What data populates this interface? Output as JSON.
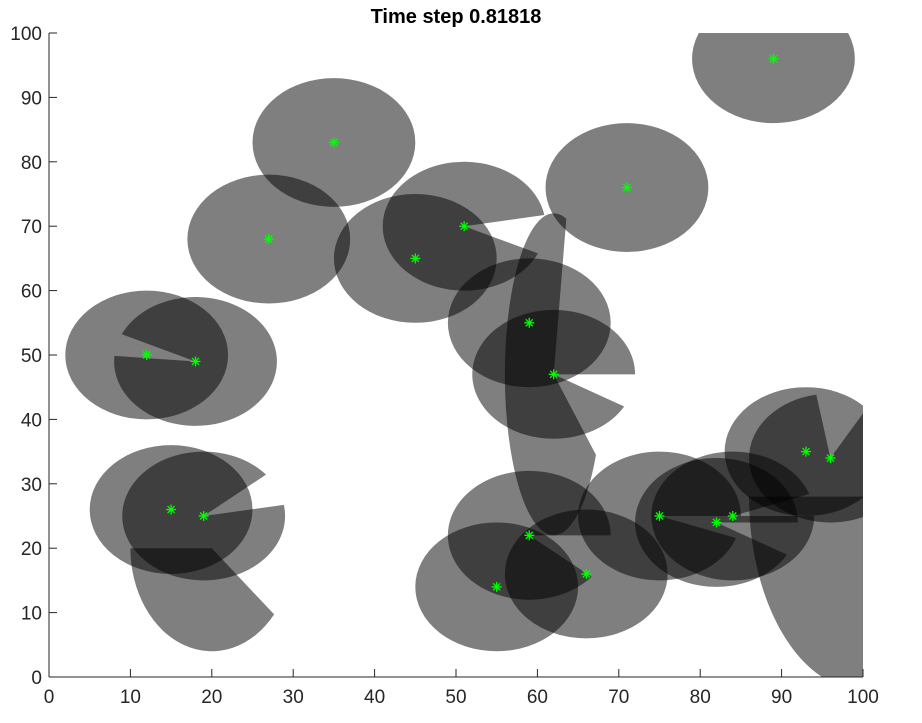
{
  "chart_data": {
    "type": "scatter",
    "title": "Time step 0.81818",
    "xlabel": "",
    "ylabel": "",
    "xlim": [
      0,
      100
    ],
    "ylim": [
      0,
      100
    ],
    "x_ticks": [
      0,
      10,
      20,
      30,
      40,
      50,
      60,
      70,
      80,
      90,
      100
    ],
    "y_ticks": [
      0,
      10,
      20,
      30,
      40,
      50,
      60,
      70,
      80,
      90,
      100
    ],
    "grid": false,
    "box": "left-bottom",
    "marker": "asterisk",
    "marker_color": "#00ff00",
    "shape_fill_color": "#000000",
    "shape_fill_opacity": 0.5,
    "points": [
      {
        "x": 12,
        "y": 50
      },
      {
        "x": 18,
        "y": 49
      },
      {
        "x": 15,
        "y": 26
      },
      {
        "x": 19,
        "y": 25
      },
      {
        "x": 27,
        "y": 68
      },
      {
        "x": 35,
        "y": 83
      },
      {
        "x": 45,
        "y": 65
      },
      {
        "x": 51,
        "y": 70
      },
      {
        "x": 59,
        "y": 55
      },
      {
        "x": 62,
        "y": 47
      },
      {
        "x": 71,
        "y": 76
      },
      {
        "x": 89,
        "y": 96
      },
      {
        "x": 59,
        "y": 22
      },
      {
        "x": 55,
        "y": 14
      },
      {
        "x": 66,
        "y": 16
      },
      {
        "x": 75,
        "y": 25
      },
      {
        "x": 82,
        "y": 24
      },
      {
        "x": 84,
        "y": 25
      },
      {
        "x": 93,
        "y": 35
      },
      {
        "x": 96,
        "y": 34
      }
    ],
    "regions": [
      {
        "kind": "ellipse",
        "cx": 12,
        "cy": 50,
        "rx": 10,
        "ry": 10
      },
      {
        "kind": "sector",
        "cx": 18,
        "cy": 49,
        "rx": 10,
        "ry": 10,
        "from_deg": 175,
        "to_deg": 515
      },
      {
        "kind": "ellipse",
        "cx": 15,
        "cy": 26,
        "rx": 10,
        "ry": 10
      },
      {
        "kind": "sector",
        "cx": 19,
        "cy": 25,
        "rx": 10,
        "ry": 10,
        "from_deg": 40,
        "to_deg": 370
      },
      {
        "kind": "sector",
        "cx": 20,
        "cy": 20,
        "rx": 10,
        "ry": 16,
        "from_deg": 180,
        "to_deg": 320
      },
      {
        "kind": "ellipse",
        "cx": 27,
        "cy": 68,
        "rx": 10,
        "ry": 10
      },
      {
        "kind": "ellipse",
        "cx": 35,
        "cy": 83,
        "rx": 10,
        "ry": 10
      },
      {
        "kind": "ellipse",
        "cx": 45,
        "cy": 65,
        "rx": 10,
        "ry": 10
      },
      {
        "kind": "sector",
        "cx": 51,
        "cy": 70,
        "rx": 10,
        "ry": 10,
        "from_deg": 10,
        "to_deg": 335
      },
      {
        "kind": "ellipse",
        "cx": 59,
        "cy": 55,
        "rx": 10,
        "ry": 10
      },
      {
        "kind": "sector",
        "cx": 62,
        "cy": 47,
        "rx": 10,
        "ry": 10,
        "from_deg": 0,
        "to_deg": 330
      },
      {
        "kind": "sector",
        "cx": 62,
        "cy": 47,
        "rx": 6,
        "ry": 25,
        "from_deg": 75,
        "to_deg": 330
      },
      {
        "kind": "ellipse",
        "cx": 71,
        "cy": 76,
        "rx": 10,
        "ry": 10
      },
      {
        "kind": "ellipse",
        "cx": 89,
        "cy": 96,
        "rx": 10,
        "ry": 10
      },
      {
        "kind": "sector",
        "cx": 59,
        "cy": 22,
        "rx": 10,
        "ry": 10,
        "from_deg": 0,
        "to_deg": 320
      },
      {
        "kind": "ellipse",
        "cx": 55,
        "cy": 14,
        "rx": 10,
        "ry": 10
      },
      {
        "kind": "ellipse",
        "cx": 66,
        "cy": 16,
        "rx": 10,
        "ry": 10
      },
      {
        "kind": "sector",
        "cx": 75,
        "cy": 25,
        "rx": 10,
        "ry": 10,
        "from_deg": 0,
        "to_deg": 340
      },
      {
        "kind": "sector",
        "cx": 82,
        "cy": 24,
        "rx": 10,
        "ry": 10,
        "from_deg": 0,
        "to_deg": 330
      },
      {
        "kind": "sector",
        "cx": 84,
        "cy": 25,
        "rx": 10,
        "ry": 10,
        "from_deg": 20,
        "to_deg": 360
      },
      {
        "kind": "ellipse",
        "cx": 93,
        "cy": 35,
        "rx": 10,
        "ry": 10
      },
      {
        "kind": "sector",
        "cx": 96,
        "cy": 34,
        "rx": 10,
        "ry": 10,
        "from_deg": 100,
        "to_deg": 420
      },
      {
        "kind": "sector",
        "cx": 100,
        "cy": 28,
        "rx": 14,
        "ry": 30,
        "from_deg": 180,
        "to_deg": 300
      }
    ]
  }
}
